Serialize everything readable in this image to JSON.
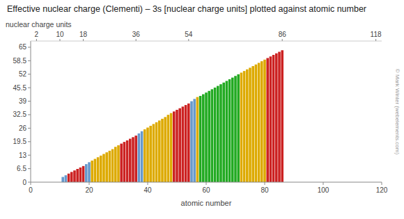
{
  "chart_data": {
    "type": "bar",
    "title": "Effective nuclear charge (Clementi) – 3s [nuclear charge units] plotted against atomic number",
    "y_label": "nuclear charge units",
    "x_label": "atomic number",
    "annotations": [
      "© Mark Winter (webelements.com)"
    ],
    "x": [
      11,
      12,
      13,
      14,
      15,
      16,
      17,
      18,
      19,
      20,
      21,
      22,
      23,
      24,
      25,
      26,
      27,
      28,
      29,
      30,
      31,
      32,
      33,
      34,
      35,
      36,
      37,
      38,
      39,
      40,
      41,
      42,
      43,
      44,
      45,
      46,
      47,
      48,
      49,
      50,
      51,
      52,
      53,
      54,
      55,
      56,
      57,
      58,
      59,
      60,
      61,
      62,
      63,
      64,
      65,
      66,
      67,
      68,
      69,
      70,
      71,
      72,
      73,
      74,
      75,
      76,
      77,
      78,
      79,
      80,
      81,
      82,
      83,
      84,
      85,
      86
    ],
    "values": [
      2.5074,
      3.3075,
      4.1168,
      4.9132,
      5.6418,
      6.3669,
      7.0683,
      7.7573,
      8.6796,
      9.6021,
      10.3927,
      11.1984,
      11.9936,
      12.79,
      13.5755,
      14.3576,
      15.1313,
      15.9035,
      16.9965,
      17.7652,
      18.567,
      19.381,
      20.1283,
      20.9199,
      21.6729,
      22.4237,
      23.4817,
      24.54,
      25.4405,
      26.2962,
      27.1498,
      28.0018,
      28.8488,
      29.6976,
      30.531,
      31.3647,
      32.44,
      33.2741,
      34.0568,
      34.8484,
      35.6054,
      36.4033,
      37.1572,
      37.9063,
      38.9988,
      40.0921,
      40.9969,
      41.5489,
      42.354,
      43.1585,
      43.9621,
      44.7656,
      45.569,
      46.3718,
      47.1736,
      47.9757,
      48.776,
      49.5745,
      50.3719,
      51.1698,
      51.9672,
      52.7639,
      53.5509,
      54.3402,
      55.1276,
      55.9148,
      56.6982,
      57.4808,
      58.2574,
      59.0325,
      59.7964,
      60.5596,
      61.3128,
      62.0663,
      62.8083,
      63.5533
    ],
    "colors": [
      "#6699cc",
      "#6699cc",
      "#cc2222",
      "#cc2222",
      "#cc2222",
      "#cc2222",
      "#cc2222",
      "#cc2222",
      "#6699cc",
      "#6699cc",
      "#ddaa00",
      "#ddaa00",
      "#ddaa00",
      "#ddaa00",
      "#ddaa00",
      "#ddaa00",
      "#ddaa00",
      "#ddaa00",
      "#ddaa00",
      "#ddaa00",
      "#cc2222",
      "#cc2222",
      "#cc2222",
      "#cc2222",
      "#cc2222",
      "#cc2222",
      "#6699cc",
      "#6699cc",
      "#ddaa00",
      "#ddaa00",
      "#ddaa00",
      "#ddaa00",
      "#ddaa00",
      "#ddaa00",
      "#ddaa00",
      "#ddaa00",
      "#ddaa00",
      "#ddaa00",
      "#cc2222",
      "#cc2222",
      "#cc2222",
      "#cc2222",
      "#cc2222",
      "#cc2222",
      "#6699cc",
      "#6699cc",
      "#ddaa00",
      "#22aa22",
      "#22aa22",
      "#22aa22",
      "#22aa22",
      "#22aa22",
      "#22aa22",
      "#22aa22",
      "#22aa22",
      "#22aa22",
      "#22aa22",
      "#22aa22",
      "#22aa22",
      "#22aa22",
      "#22aa22",
      "#ddaa00",
      "#ddaa00",
      "#ddaa00",
      "#ddaa00",
      "#ddaa00",
      "#ddaa00",
      "#ddaa00",
      "#ddaa00",
      "#ddaa00",
      "#cc2222",
      "#cc2222",
      "#cc2222",
      "#cc2222",
      "#cc2222",
      "#cc2222"
    ],
    "xlim": [
      0,
      120
    ],
    "xticks": [
      0,
      20,
      40,
      60,
      80,
      100,
      120
    ],
    "x2ticks": [
      2,
      10,
      18,
      36,
      54,
      86,
      118
    ],
    "ylim": [
      0,
      68
    ],
    "yticks": [
      0,
      6.5,
      13,
      19.5,
      26,
      32.5,
      39,
      45.5,
      52,
      58.5,
      65
    ],
    "grid": false
  }
}
